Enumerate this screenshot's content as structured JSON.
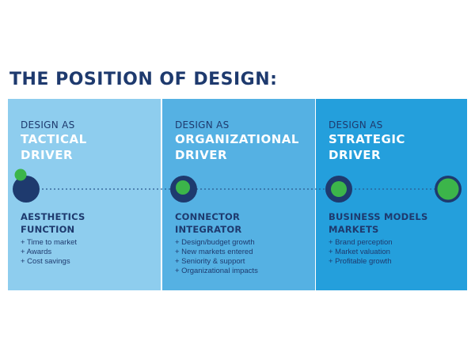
{
  "title": "THE POSITION OF DESIGN:",
  "columns": [
    {
      "eyebrow": "DESIGN AS",
      "headline": [
        "TACTICAL",
        "DRIVER"
      ],
      "subtitle": [
        "AESTHETICS",
        "FUNCTION"
      ],
      "bullets": [
        "+ Time to market",
        "+ Awards",
        "+ Cost savings"
      ]
    },
    {
      "eyebrow": "DESIGN AS",
      "headline": [
        "ORGANIZATIONAL",
        "DRIVER"
      ],
      "subtitle": [
        "CONNECTOR",
        "INTEGRATOR"
      ],
      "bullets": [
        "+ Design/budget growth",
        "+ New markets entered",
        "+ Seniority & support",
        "+ Organizational impacts"
      ]
    },
    {
      "eyebrow": "DESIGN AS",
      "headline": [
        "STRATEGIC",
        "DRIVER"
      ],
      "subtitle": [
        "BUSINESS MODELS",
        "MARKETS"
      ],
      "bullets": [
        "+ Brand perception",
        "+ Market valuation",
        "+ Profitable growth"
      ]
    }
  ],
  "colors": {
    "title": "#1e3a6e",
    "panel_light": "#8ecdee",
    "panel_mid": "#55b1e3",
    "panel_strong": "#249fdc",
    "navy_dot": "#1e3a6e",
    "green_dot": "#3cb54a"
  }
}
